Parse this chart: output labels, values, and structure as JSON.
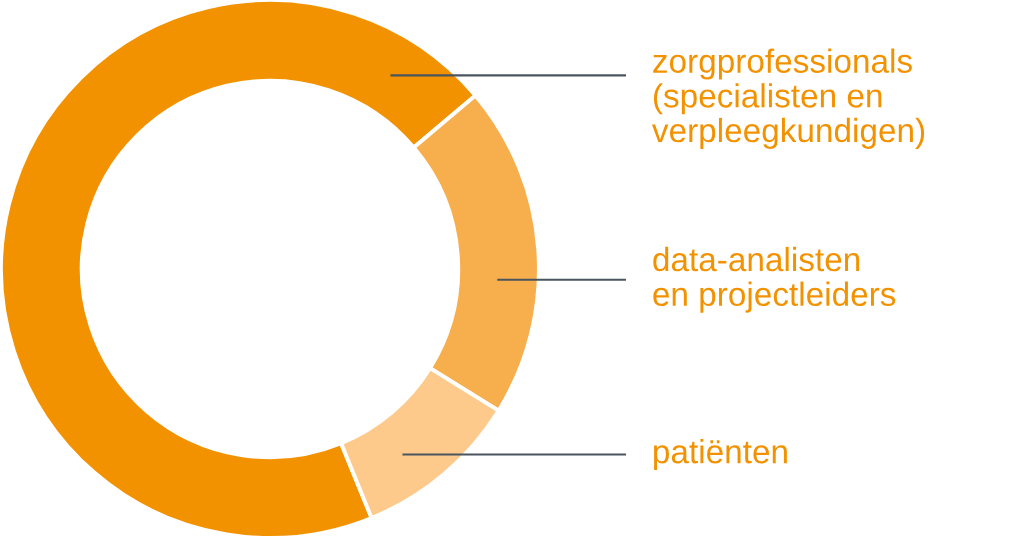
{
  "chart_data": {
    "type": "donut",
    "categories": [
      "zorgprofessionals\n(specialisten en\nverpleegkundigen)",
      "data-analisten\nen projectleiders",
      "patiënten"
    ],
    "values": [
      70,
      20,
      10
    ],
    "colors": [
      "#f39200",
      "#f7af4e",
      "#fdca8c"
    ],
    "legend": false
  }
}
